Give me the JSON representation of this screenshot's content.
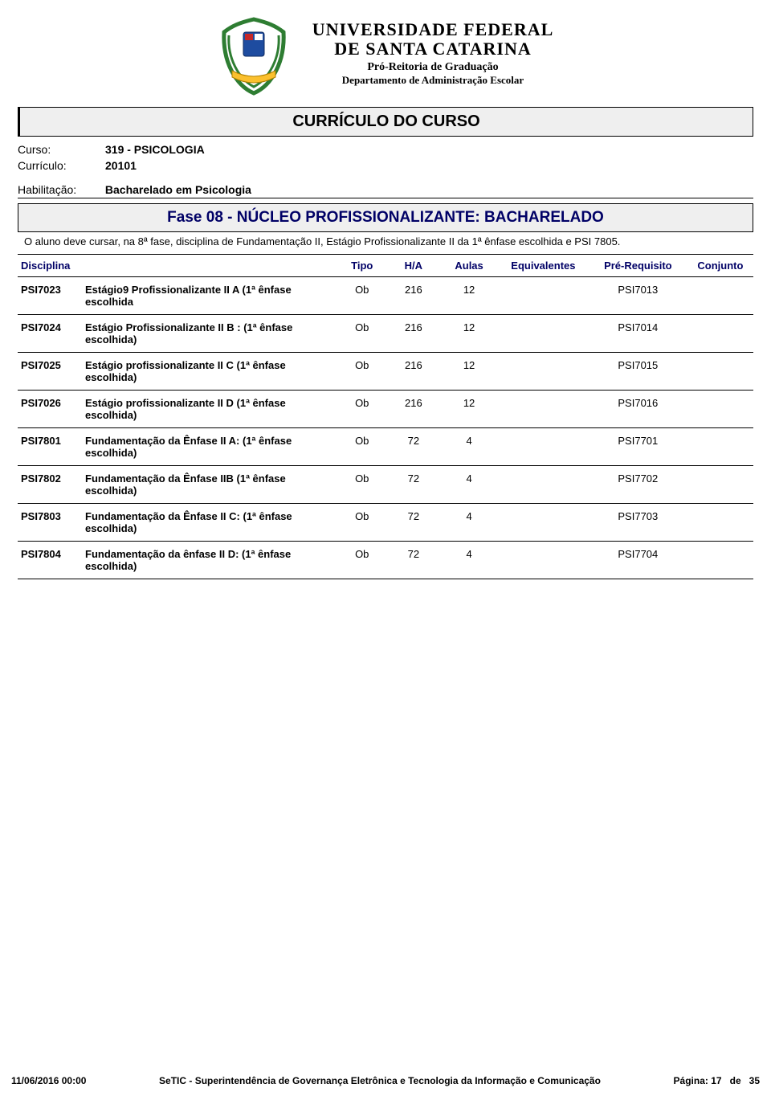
{
  "university": {
    "line1": "UNIVERSIDADE FEDERAL",
    "line2": "DE SANTA CATARINA",
    "line3": "Pró-Reitoria de Graduação",
    "line4": "Departamento de Administração Escolar"
  },
  "colors": {
    "banner_bg": "#efefef",
    "accent": "#000066",
    "text": "#000000",
    "background": "#ffffff",
    "crest_laurel": "#2e7d32",
    "crest_ribbon": "#fbc02d",
    "crest_shield": "#1e4ca0",
    "crest_shield_accent": "#c62828"
  },
  "title_banner": "CURRÍCULO DO CURSO",
  "info": {
    "curso_label": "Curso:",
    "curso_value": "319 - PSICOLOGIA",
    "curriculo_label": "Currículo:",
    "curriculo_value": "20101",
    "habilitacao_label": "Habilitação:",
    "habilitacao_value": "Bacharelado em Psicologia"
  },
  "phase": {
    "banner": "Fase 08 - NÚCLEO PROFISSIONALIZANTE: BACHARELADO",
    "description": "O aluno deve cursar, na 8ª fase, disciplina de Fundamentação II, Estágio Profissionalizante II da 1ª ênfase escolhida e PSI 7805."
  },
  "table": {
    "headers": {
      "disciplina": "Disciplina",
      "tipo": "Tipo",
      "ha": "H/A",
      "aulas": "Aulas",
      "equivalentes": "Equivalentes",
      "prerequisito": "Pré-Requisito",
      "conjunto": "Conjunto"
    },
    "rows": [
      {
        "code": "PSI7023",
        "name": "Estágio9 Profissionalizante II A (1ª ênfase escolhida",
        "tipo": "Ob",
        "ha": "216",
        "aulas": "12",
        "equivalentes": "",
        "pre": "PSI7013",
        "conjunto": ""
      },
      {
        "code": "PSI7024",
        "name": "Estágio Profissionalizante II B : (1ª ênfase escolhida)",
        "tipo": "Ob",
        "ha": "216",
        "aulas": "12",
        "equivalentes": "",
        "pre": "PSI7014",
        "conjunto": ""
      },
      {
        "code": "PSI7025",
        "name": "Estágio profissionalizante II C (1ª ênfase escolhida)",
        "tipo": "Ob",
        "ha": "216",
        "aulas": "12",
        "equivalentes": "",
        "pre": "PSI7015",
        "conjunto": ""
      },
      {
        "code": "PSI7026",
        "name": "Estágio profissionalizante II D (1ª ênfase escolhida)",
        "tipo": "Ob",
        "ha": "216",
        "aulas": "12",
        "equivalentes": "",
        "pre": "PSI7016",
        "conjunto": ""
      },
      {
        "code": "PSI7801",
        "name": "Fundamentação da Ênfase II A: (1ª ênfase escolhida)",
        "tipo": "Ob",
        "ha": "72",
        "aulas": "4",
        "equivalentes": "",
        "pre": "PSI7701",
        "conjunto": ""
      },
      {
        "code": "PSI7802",
        "name": "Fundamentação da Ênfase IIB (1ª ênfase escolhida)",
        "tipo": "Ob",
        "ha": "72",
        "aulas": "4",
        "equivalentes": "",
        "pre": "PSI7702",
        "conjunto": ""
      },
      {
        "code": "PSI7803",
        "name": "Fundamentação da Ênfase II C: (1ª ênfase escolhida)",
        "tipo": "Ob",
        "ha": "72",
        "aulas": "4",
        "equivalentes": "",
        "pre": "PSI7703",
        "conjunto": ""
      },
      {
        "code": "PSI7804",
        "name": "Fundamentação da ênfase II D: (1ª ênfase escolhida)",
        "tipo": "Ob",
        "ha": "72",
        "aulas": "4",
        "equivalentes": "",
        "pre": "PSI7704",
        "conjunto": ""
      }
    ]
  },
  "footer": {
    "datetime": "11/06/2016 00:00",
    "org": "SeTIC - Superintendência de Governança Eletrônica e Tecnologia da Informação e Comunicação",
    "page_label": "Página:",
    "page_sep": "de",
    "page_current": "17",
    "page_total": "35"
  }
}
